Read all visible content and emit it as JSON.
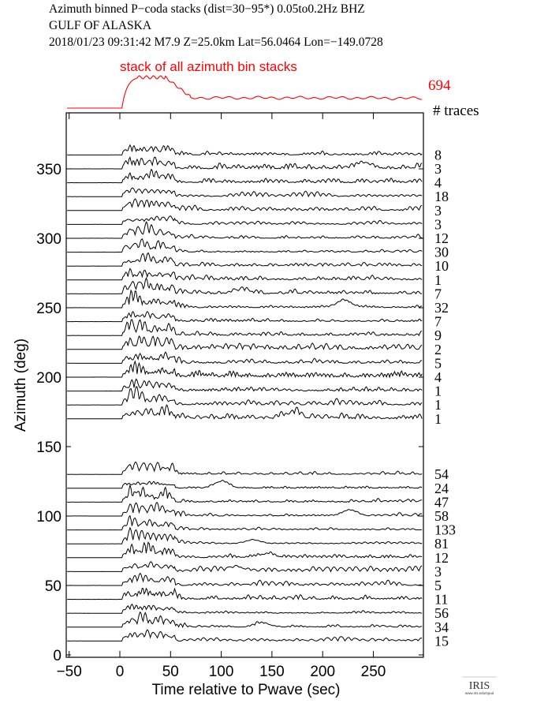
{
  "header": {
    "line1": "Azimuth binned P−coda stacks (dist=30−95*)  0.05to0.2Hz  BHZ",
    "line2": "GULF OF ALASKA",
    "line3": "2018/01/23  09:31:42  M7.9  Z=25.0km Lat=56.0464 Lon=−149.0728"
  },
  "logo": {
    "text": "IRIS",
    "subtext": "www.iris.edu/spud"
  },
  "chart_data": {
    "type": "line",
    "title": "Azimuth binned P−coda stacks (dist=30−95*)  0.05to0.2Hz  BHZ",
    "xlabel": "Time relative to Pwave (sec)",
    "ylabel": "Azimuth (deg)",
    "xlim": [
      -52,
      298
    ],
    "ylim": [
      -2,
      390
    ],
    "xticks": [
      -50,
      0,
      50,
      100,
      150,
      200,
      250
    ],
    "yticks": [
      0,
      50,
      100,
      150,
      200,
      250,
      300,
      350
    ],
    "grid": false,
    "stack": {
      "label": "stack of all azimuth bin stacks",
      "count": "694",
      "color": "#ff0000"
    },
    "count_header": "# traces",
    "trace_color": "#000000",
    "traces": [
      {
        "azimuth": 360,
        "count": "8"
      },
      {
        "azimuth": 350,
        "count": "3"
      },
      {
        "azimuth": 340,
        "count": "4"
      },
      {
        "azimuth": 330,
        "count": "18"
      },
      {
        "azimuth": 320,
        "count": "3"
      },
      {
        "azimuth": 310,
        "count": "3"
      },
      {
        "azimuth": 300,
        "count": "12"
      },
      {
        "azimuth": 290,
        "count": "30"
      },
      {
        "azimuth": 280,
        "count": "10"
      },
      {
        "azimuth": 270,
        "count": "1"
      },
      {
        "azimuth": 260,
        "count": "7"
      },
      {
        "azimuth": 250,
        "count": "32"
      },
      {
        "azimuth": 240,
        "count": "7"
      },
      {
        "azimuth": 230,
        "count": "9"
      },
      {
        "azimuth": 220,
        "count": "2"
      },
      {
        "azimuth": 210,
        "count": "5"
      },
      {
        "azimuth": 200,
        "count": "4"
      },
      {
        "azimuth": 190,
        "count": "1"
      },
      {
        "azimuth": 180,
        "count": "1"
      },
      {
        "azimuth": 170,
        "count": "1"
      },
      {
        "azimuth": 130,
        "count": "54"
      },
      {
        "azimuth": 120,
        "count": "24"
      },
      {
        "azimuth": 110,
        "count": "47"
      },
      {
        "azimuth": 100,
        "count": "58"
      },
      {
        "azimuth": 90,
        "count": "133"
      },
      {
        "azimuth": 80,
        "count": "81"
      },
      {
        "azimuth": 70,
        "count": "12"
      },
      {
        "azimuth": 60,
        "count": "3"
      },
      {
        "azimuth": 50,
        "count": "5"
      },
      {
        "azimuth": 40,
        "count": "11"
      },
      {
        "azimuth": 30,
        "count": "56"
      },
      {
        "azimuth": 20,
        "count": "34"
      },
      {
        "azimuth": 10,
        "count": "15"
      }
    ]
  }
}
